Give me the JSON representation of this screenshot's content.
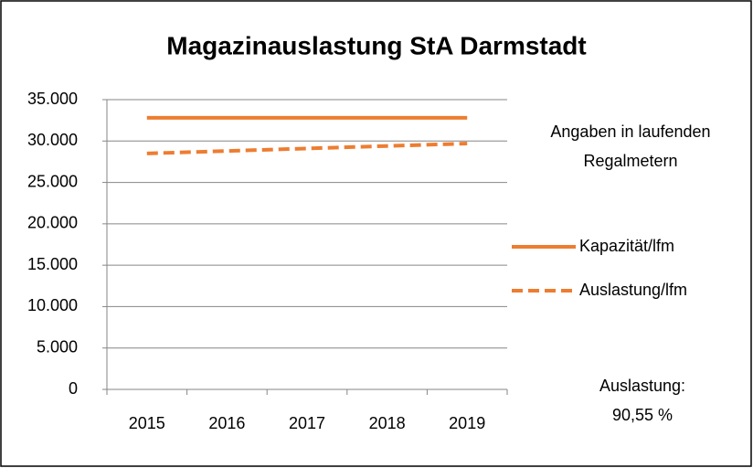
{
  "chart_data": {
    "type": "line",
    "title": "Magazinauslastung StA Darmstadt",
    "categories": [
      "2015",
      "2016",
      "2017",
      "2018",
      "2019"
    ],
    "series": [
      {
        "name": "Kapazität/lfm",
        "color": "#ed7d31",
        "dash": false,
        "values": [
          32800,
          32800,
          32800,
          32800,
          32800
        ]
      },
      {
        "name": "Auslastung/lfm",
        "color": "#ed7d31",
        "dash": true,
        "values": [
          28500,
          28800,
          29100,
          29400,
          29700
        ]
      }
    ],
    "ylim": [
      0,
      35000
    ],
    "yticks": [
      0,
      {
        "value": 5000,
        "label": "5.000"
      },
      {
        "value": 10000,
        "label": "10.000"
      },
      {
        "value": 15000,
        "label": "15.000"
      },
      {
        "value": 20000,
        "label": "20.000"
      },
      {
        "value": 25000,
        "label": "25.000"
      },
      {
        "value": 30000,
        "label": "30.000"
      },
      {
        "value": 35000,
        "label": "35.000"
      }
    ],
    "grid": true,
    "legend": "right",
    "annotations": [
      "Angaben in laufenden",
      "Regalmetern",
      "Auslastung:",
      "90,55 %"
    ]
  }
}
